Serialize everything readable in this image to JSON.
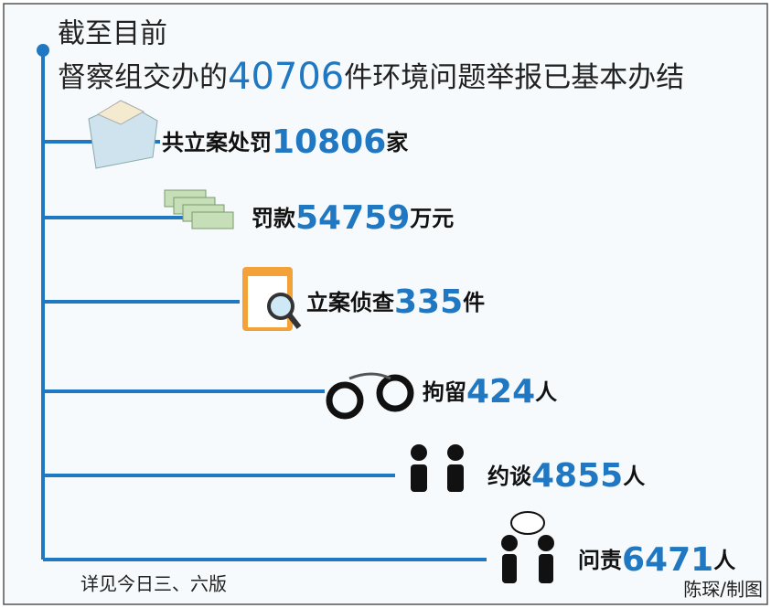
{
  "header": {
    "line1": "截至目前",
    "line2_prefix": "督察组交办的",
    "line2_number": 40706,
    "line2_suffix": "件环境问题举报已基本办结"
  },
  "items": [
    {
      "label": "共立案处罚",
      "number": 10806,
      "unit": "家"
    },
    {
      "label": "罚款",
      "number": 54759,
      "unit": "万元"
    },
    {
      "label": "立案侦查",
      "number": 335,
      "unit": "件"
    },
    {
      "label": "拘留",
      "number": 424,
      "unit": "人"
    },
    {
      "label": "约谈",
      "number": 4855,
      "unit": "人"
    },
    {
      "label": "问责",
      "number": 6471,
      "unit": "人"
    }
  ],
  "footer": {
    "note": "详见今日三、六版",
    "credit": "陈琛/制图"
  }
}
